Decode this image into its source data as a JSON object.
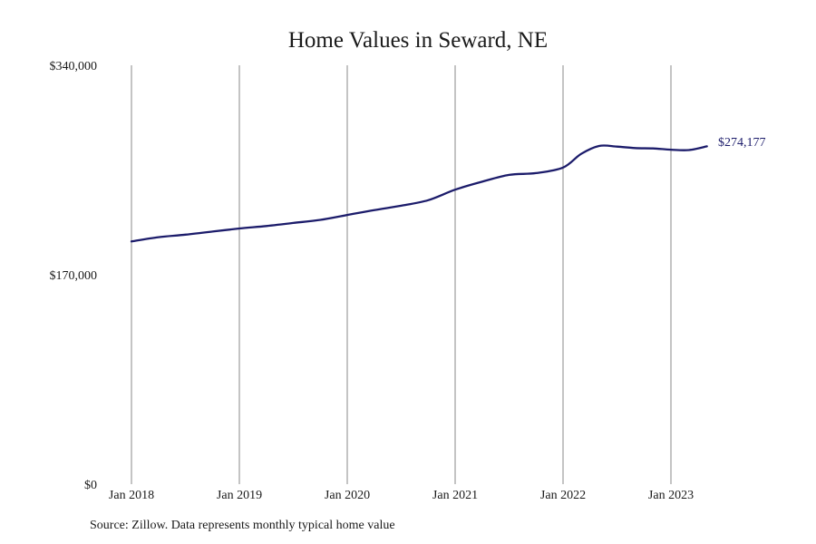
{
  "colors": {
    "line": "#1c1c6b",
    "grid": "#8a8a8a"
  },
  "source_text": "Source: Zillow. Data represents monthly typical home value",
  "chart_data": {
    "type": "line",
    "title": "Home Values in Seward, NE",
    "xlabel": "",
    "ylabel": "",
    "ylim": [
      0,
      340000
    ],
    "y_ticks": [
      {
        "value": 0,
        "label": "$0"
      },
      {
        "value": 170000,
        "label": "$170,000"
      },
      {
        "value": 340000,
        "label": "$340,000"
      }
    ],
    "x_ticks": [
      {
        "value": 2018.0,
        "label": "Jan 2018"
      },
      {
        "value": 2019.0,
        "label": "Jan 2019"
      },
      {
        "value": 2020.0,
        "label": "Jan 2020"
      },
      {
        "value": 2021.0,
        "label": "Jan 2021"
      },
      {
        "value": 2022.0,
        "label": "Jan 2022"
      },
      {
        "value": 2023.0,
        "label": "Jan 2023"
      }
    ],
    "grid": "vertical",
    "end_label": "$274,177",
    "series": [
      {
        "x": [
          "2018-01",
          "2018-04",
          "2018-07",
          "2018-10",
          "2019-01",
          "2019-04",
          "2019-07",
          "2019-10",
          "2020-01",
          "2020-04",
          "2020-07",
          "2020-10",
          "2021-01",
          "2021-04",
          "2021-07",
          "2021-10",
          "2022-01",
          "2022-03",
          "2022-05",
          "2022-07",
          "2022-09",
          "2022-11",
          "2023-01",
          "2023-03",
          "2023-05"
        ],
        "values": [
          197000,
          200500,
          202500,
          205000,
          207500,
          209500,
          212000,
          214500,
          218500,
          222500,
          226000,
          230500,
          239000,
          245500,
          251000,
          252500,
          257000,
          268000,
          274500,
          274000,
          272800,
          272500,
          271500,
          271200,
          274177
        ]
      }
    ]
  }
}
